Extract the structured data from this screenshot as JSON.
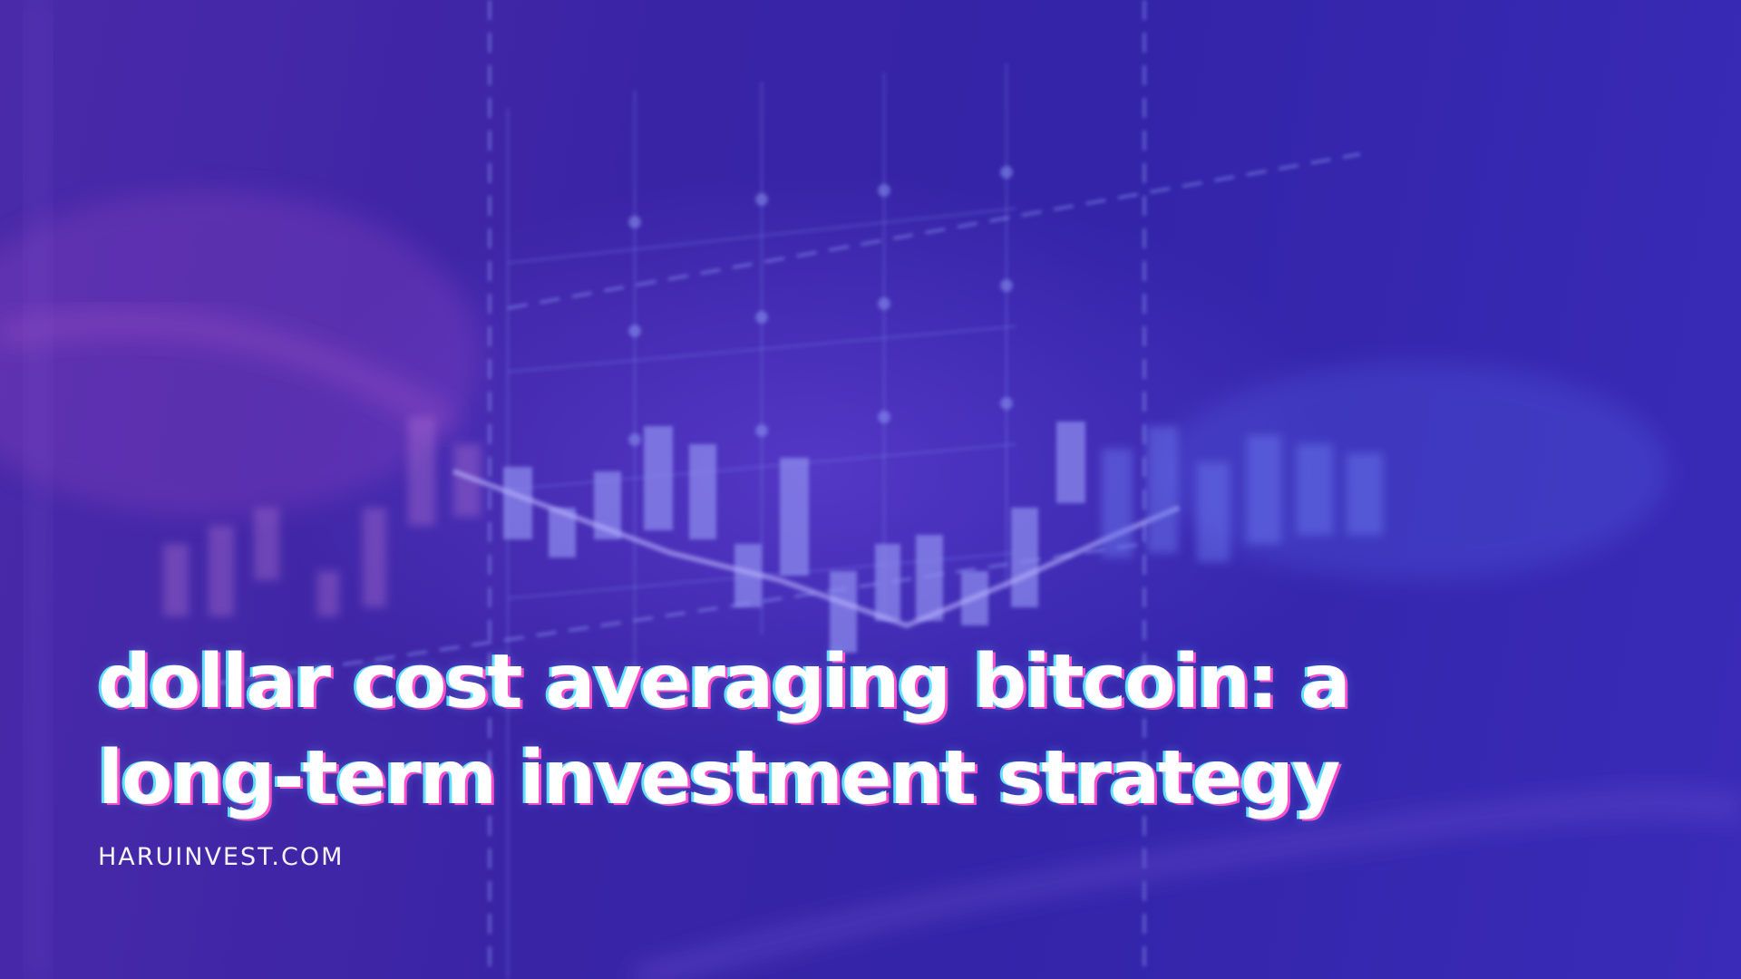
{
  "headline": {
    "line1": "dollar cost averaging bitcoin: a",
    "line2": "long-term investment strategy"
  },
  "site": "HARUINVEST.COM",
  "colors": {
    "background_start": "#4a2aa8",
    "background_end": "#3a2bb8",
    "headline_text": "#ffffff",
    "headline_glow_cyan": "#5fe0ff",
    "headline_glow_pink": "#ff4fc8"
  },
  "background_image": "blurred-candlestick-chart"
}
